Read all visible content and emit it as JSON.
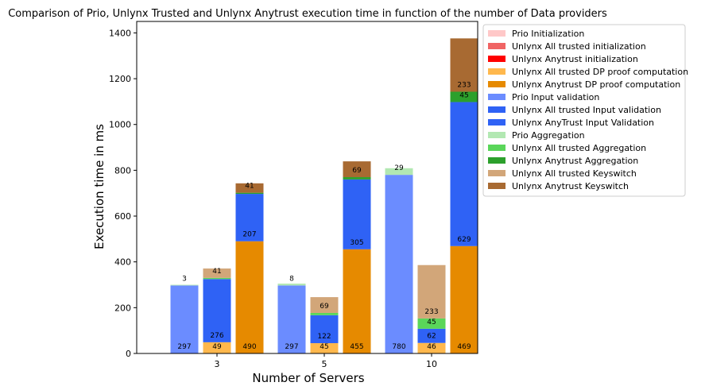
{
  "chart_data": {
    "type": "bar",
    "stacked": true,
    "title": "Comparison of Prio, Unlynx Trusted and Unlynx Anytrust execution time in function of the number of Data providers",
    "xlabel": "Number of Servers",
    "ylabel": "Execution time in ms",
    "categories": [
      "3",
      "5",
      "10"
    ],
    "ylim": [
      0,
      1450
    ],
    "yticks": [
      0,
      200,
      400,
      600,
      800,
      1000,
      1200,
      1400
    ],
    "grid": false,
    "legend_position": "outside-right",
    "groups": [
      "Prio",
      "Unlynx All trusted",
      "Unlynx Anytrust"
    ],
    "series": [
      {
        "name": "Prio Initialization",
        "group": "Prio",
        "color": "#ffc8c8",
        "values": [
          0,
          0,
          0
        ],
        "labels": [
          "",
          "",
          ""
        ]
      },
      {
        "name": "Unlynx All trusted initialization",
        "group": "Unlynx All trusted",
        "color": "#f06464",
        "values": [
          0,
          0,
          0
        ],
        "labels": [
          "",
          "",
          ""
        ]
      },
      {
        "name": "Unlynx Anytrust initialization",
        "group": "Unlynx Anytrust",
        "color": "#ff0000",
        "values": [
          0,
          0,
          0
        ],
        "labels": [
          "",
          "",
          ""
        ]
      },
      {
        "name": "Unlynx All trusted DP proof computation",
        "group": "Unlynx All trusted",
        "color": "#ffb84d",
        "values": [
          49,
          45,
          46
        ],
        "labels": [
          "49",
          "45",
          "46"
        ]
      },
      {
        "name": "Unlynx Anytrust DP proof computation",
        "group": "Unlynx Anytrust",
        "color": "#e68a00",
        "values": [
          490,
          455,
          469
        ],
        "labels": [
          "490",
          "455",
          "469"
        ]
      },
      {
        "name": "Prio Input validation",
        "group": "Prio",
        "color": "#6b8cff",
        "values": [
          297,
          297,
          780
        ],
        "labels": [
          "297",
          "297",
          "780"
        ]
      },
      {
        "name": "Unlynx All trusted Input validation",
        "group": "Unlynx All trusted",
        "color": "#2f62f5",
        "values": [
          276,
          122,
          62
        ],
        "labels": [
          "276",
          "122",
          "62"
        ]
      },
      {
        "name": "Unlynx AnyTrust Input Validation",
        "group": "Unlynx Anytrust",
        "color": "#2f62f5",
        "values": [
          207,
          305,
          629
        ],
        "labels": [
          "207",
          "305",
          "629"
        ]
      },
      {
        "name": "Prio Aggregation",
        "group": "Prio",
        "color": "#b2e8b2",
        "values": [
          3,
          8,
          29
        ],
        "labels": [
          "3",
          "8",
          "29"
        ]
      },
      {
        "name": "Unlynx All trusted Aggregation",
        "group": "Unlynx All trusted",
        "color": "#5ad65a",
        "values": [
          5,
          10,
          45
        ],
        "labels": [
          "5",
          "10",
          "45"
        ]
      },
      {
        "name": "Unlynx Anytrust Aggregation",
        "group": "Unlynx Anytrust",
        "color": "#2ca02c",
        "values": [
          5,
          10,
          45
        ],
        "labels": [
          "5",
          "10",
          "45"
        ]
      },
      {
        "name": "Unlynx All trusted Keyswitch",
        "group": "Unlynx All trusted",
        "color": "#d2a679",
        "values": [
          41,
          69,
          233
        ],
        "labels": [
          "41",
          "69",
          "233"
        ]
      },
      {
        "name": "Unlynx Anytrust Keyswitch",
        "group": "Unlynx Anytrust",
        "color": "#a86a32",
        "values": [
          41,
          69,
          233
        ],
        "labels": [
          "41",
          "69",
          "233"
        ]
      }
    ]
  }
}
